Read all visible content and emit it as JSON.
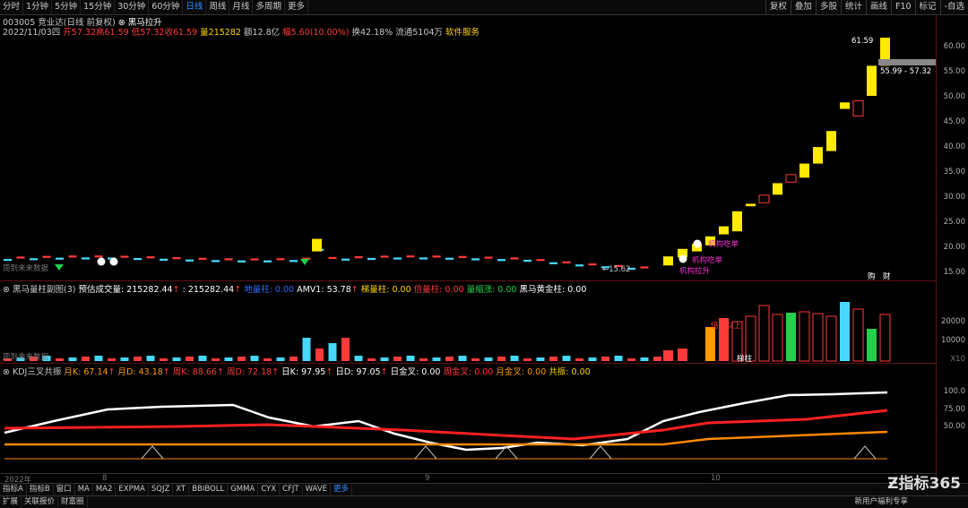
{
  "toolbar": {
    "tabs": [
      "分时",
      "1分钟",
      "5分钟",
      "15分钟",
      "30分钟",
      "60分钟",
      "日线",
      "周线",
      "月线",
      "多周期",
      "更多"
    ],
    "active_tab": "日线",
    "right_buttons": [
      "复权",
      "叠加",
      "多股",
      "统计",
      "画线",
      "F10",
      "标记",
      "-自选"
    ]
  },
  "header": {
    "title": "003005 竞业达(日线 前复权)",
    "indicator_name": "黑马拉升",
    "date": "2022/11/03四",
    "open": "开57.32",
    "high": "高61.59",
    "low": "低57.32",
    "close": "收61.59",
    "volume": "量215282",
    "amount": "额12.8亿",
    "change": "幅5.60(10.00%)",
    "turnover": "换42.18%",
    "float": "流通5104万",
    "service": "软件服务"
  },
  "main_chart": {
    "price_axis": [
      "60.00",
      "55.00",
      "50.00",
      "45.00",
      "40.00",
      "35.00",
      "30.00",
      "25.00",
      "20.00",
      "15.00"
    ],
    "high_label": "61.59",
    "low_label": "15.62",
    "price_tag": "55.99 - 57.32",
    "overlay_left": "周到来来数据",
    "labels": {
      "jigou_1": "机构吃单",
      "jigou_2": "机构吃单",
      "jigou_3": "机构拉升",
      "gou": "购",
      "cai": "财"
    }
  },
  "volume_panel": {
    "title": "黑马量柱副图(3)",
    "est_vol": "预估成交量: 215282.44",
    "vol2": ": 215282.44",
    "small": "地量柱: 0.00",
    "amv": "AMV1: 53.78",
    "bench": "梯量柱: 0.00",
    "double": "倍量柱: 0.00",
    "shrink": "量缩涨: 0.00",
    "gold": "黑马黄金柱: 0.00",
    "axis": [
      "20000",
      "10000"
    ],
    "axis_unit": "X10",
    "overlay_left": "周到来来数据",
    "labels": {
      "stair": "梯柱",
      "double": "倍量以上",
      "bench2": "梯柱"
    }
  },
  "kdj_panel": {
    "title": "KDJ三叉共振",
    "month_k": "月K: 67.14",
    "month_d": "月D: 43.18",
    "week_k": "周K: 88.66",
    "week_d": "周D: 72.18",
    "day_k": "日K: 97.95",
    "day_d": "日D: 97.05",
    "day_cross": "日金叉: 0.00",
    "week_cross": "周金叉: 0.00",
    "month_cross": "月金叉: 0.00",
    "resonance": "共振: 0.00",
    "axis": [
      "100.0",
      "75.00",
      "50.00"
    ]
  },
  "time_axis": [
    "2022年",
    "8",
    "9",
    "10"
  ],
  "bottom_tabs": [
    "指标A",
    "指标B",
    "窗口",
    "MA",
    "MA2",
    "EXPMA",
    "SQJZ",
    "XT",
    "BBIBOLL",
    "GMMA",
    "CYX",
    "CFJT",
    "WAVE",
    "更多"
  ],
  "bottom_tab_selected": "更多",
  "bottom_row2": [
    "扩展",
    "关联报价",
    "财富圈"
  ],
  "bottom_row2_right": "新用户福利专享",
  "logo_text": "指标365"
}
